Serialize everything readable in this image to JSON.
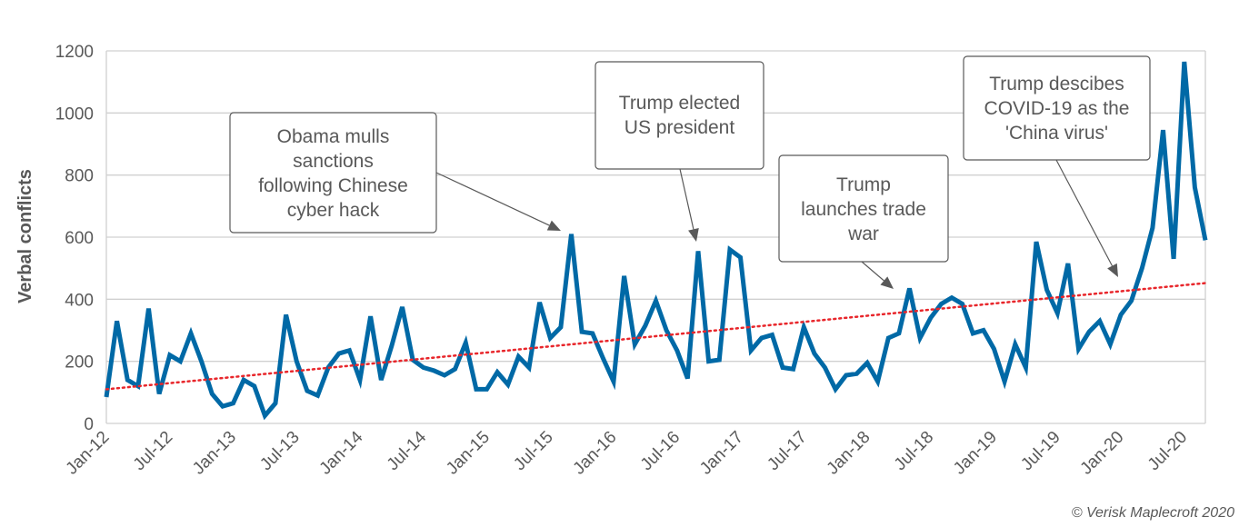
{
  "chart_data": {
    "type": "line",
    "title": "",
    "xlabel": "",
    "ylabel": "Verbal conflicts",
    "ylim": [
      0,
      1200
    ],
    "yticks": [
      0,
      200,
      400,
      600,
      800,
      1000,
      1200
    ],
    "grid": true,
    "x_start": "Jan-12",
    "x_end": "Sep-20",
    "xtick_labels": [
      "Jan-12",
      "Jul-12",
      "Jan-13",
      "Jul-13",
      "Jan-14",
      "Jul-14",
      "Jan-15",
      "Jul-15",
      "Jan-16",
      "Jul-16",
      "Jan-17",
      "Jul-17",
      "Jan-18",
      "Jul-18",
      "Jan-19",
      "Jul-19",
      "Jan-20",
      "Jul-20"
    ],
    "series": [
      {
        "color": "#0069A6",
        "values": [
          85,
          330,
          140,
          120,
          370,
          95,
          220,
          200,
          290,
          200,
          95,
          55,
          65,
          140,
          120,
          25,
          65,
          350,
          200,
          105,
          90,
          180,
          225,
          235,
          140,
          345,
          140,
          250,
          375,
          205,
          180,
          170,
          155,
          175,
          260,
          110,
          110,
          165,
          125,
          215,
          180,
          390,
          275,
          310,
          610,
          295,
          290,
          210,
          135,
          475,
          255,
          315,
          395,
          300,
          235,
          145,
          555,
          200,
          205,
          560,
          535,
          235,
          275,
          285,
          180,
          175,
          310,
          225,
          180,
          110,
          155,
          160,
          195,
          135,
          275,
          290,
          435,
          275,
          340,
          385,
          405,
          385,
          290,
          300,
          240,
          135,
          255,
          180,
          585,
          430,
          355,
          515,
          240,
          295,
          330,
          255,
          350,
          395,
          500,
          630,
          945,
          530,
          1165,
          760,
          590
        ]
      }
    ],
    "trendline": {
      "style": "dotted",
      "color": "#E8262B",
      "start": 110,
      "end": 452
    },
    "annotations": [
      {
        "text": [
          "Obama mulls",
          "sanctions",
          "following Chinese",
          "cyber hack"
        ],
        "target": "Oct-15"
      },
      {
        "text": [
          "Trump elected",
          "US president"
        ],
        "target": "Sep-16"
      },
      {
        "text": [
          "Trump",
          "launches trade",
          "war"
        ],
        "target": "Apr-18"
      },
      {
        "text": [
          "Trump descibes",
          "COVID-19 as the",
          "'China virus'"
        ],
        "target": "Mar-20"
      }
    ]
  },
  "credit": "© Verisk Maplecroft 2020"
}
